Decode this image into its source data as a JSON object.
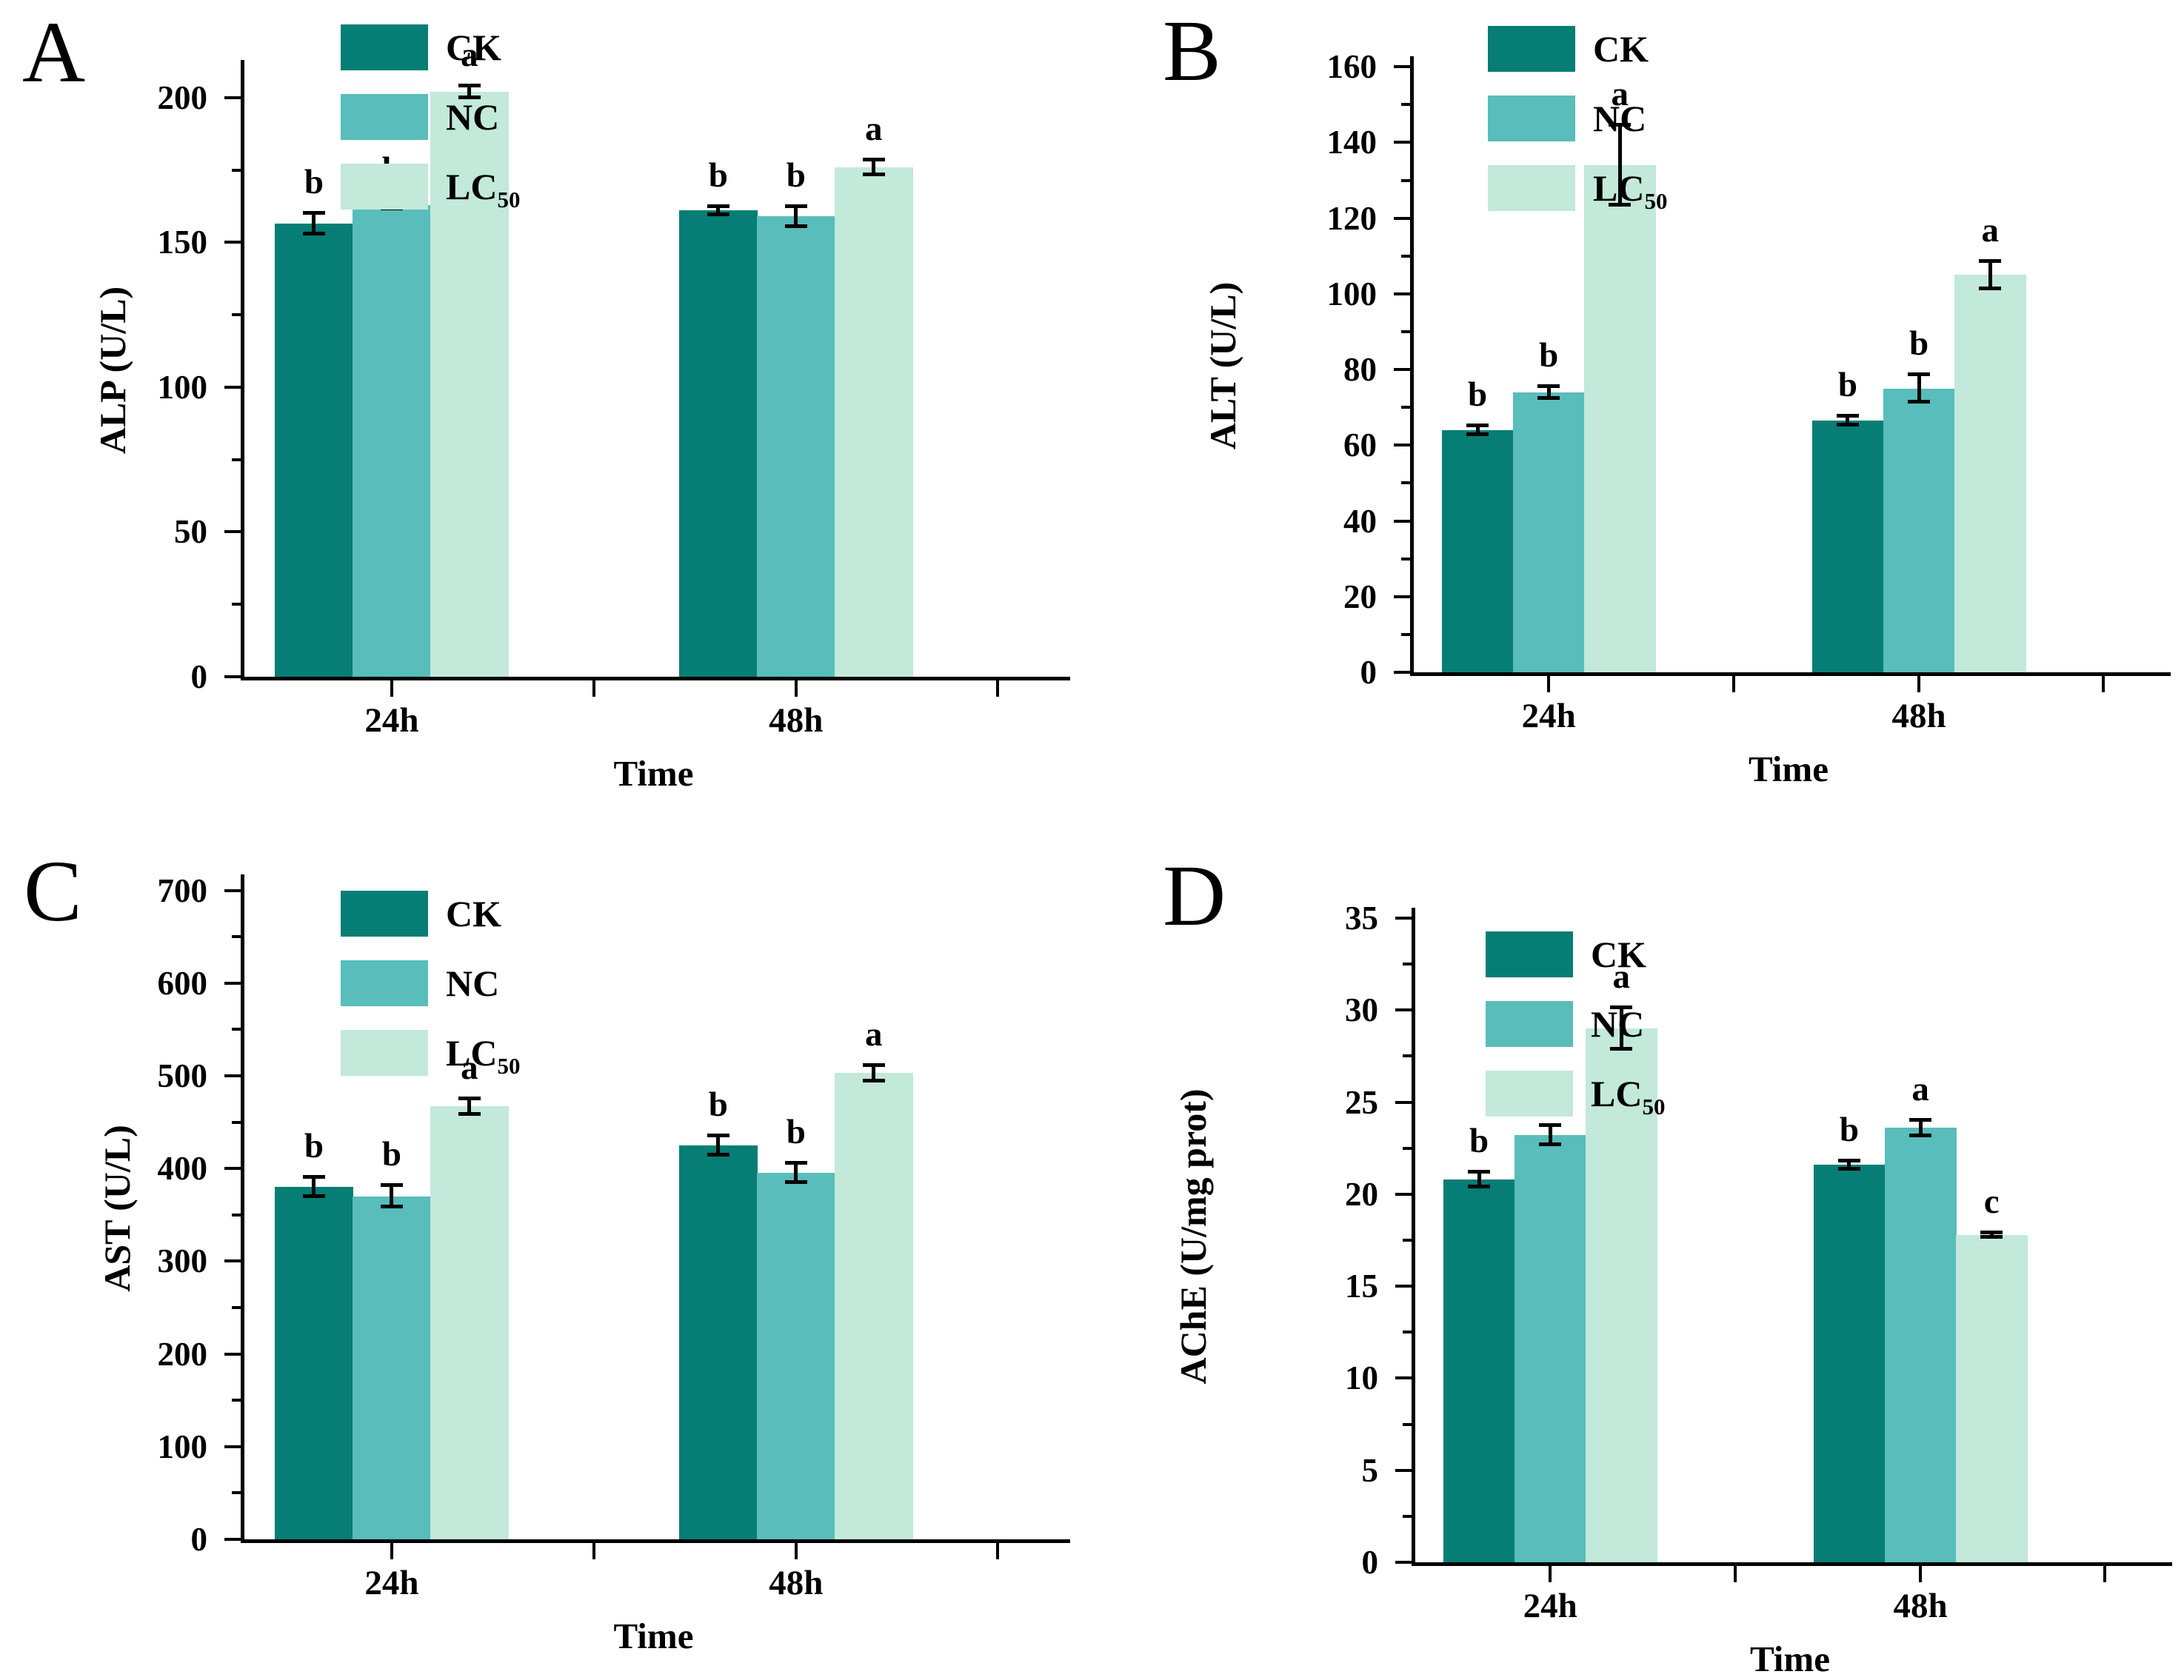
{
  "colors": {
    "series": [
      "#067e75",
      "#58bdbb",
      "#c2e9da"
    ],
    "axis": "#000000",
    "error_bars": "#000000",
    "background": "#ffffff"
  },
  "legend": {
    "items": [
      {
        "label": "CK",
        "sub": ""
      },
      {
        "label": "NC",
        "sub": ""
      },
      {
        "label": "LC",
        "sub": "50"
      }
    ]
  },
  "chart_data": [
    {
      "panel": "A",
      "type": "bar",
      "title": "",
      "ylabel": "ALP (U/L)",
      "xlabel": "Time",
      "categories": [
        "24h",
        "48h"
      ],
      "ylim": [
        0,
        212
      ],
      "yticks": [
        0,
        50,
        100,
        150,
        200
      ],
      "yminor_step": 25,
      "legend_position": "top-left",
      "grid": false,
      "series": [
        {
          "name": "CK",
          "values": [
            156.5,
            161
          ],
          "errors": [
            4,
            2
          ],
          "sig_letters": [
            "b",
            "b"
          ]
        },
        {
          "name": "NC",
          "values": [
            163,
            159
          ],
          "errors": [
            2,
            4
          ],
          "sig_letters": [
            "b",
            "b"
          ]
        },
        {
          "name": "LC50",
          "values": [
            202,
            176
          ],
          "errors": [
            2.5,
            3
          ],
          "sig_letters": [
            "a",
            "a"
          ]
        }
      ]
    },
    {
      "panel": "B",
      "type": "bar",
      "title": "",
      "ylabel": "ALT (U/L)",
      "xlabel": "Time",
      "categories": [
        "24h",
        "48h"
      ],
      "ylim": [
        0,
        162
      ],
      "yticks": [
        0,
        20,
        40,
        60,
        80,
        100,
        120,
        140,
        160
      ],
      "yminor_step": 10,
      "legend_position": "top-left",
      "grid": false,
      "series": [
        {
          "name": "CK",
          "values": [
            64,
            66.5
          ],
          "errors": [
            1.5,
            1.5
          ],
          "sig_letters": [
            "b",
            "b"
          ]
        },
        {
          "name": "NC",
          "values": [
            74,
            75
          ],
          "errors": [
            2,
            4
          ],
          "sig_letters": [
            "b",
            "b"
          ]
        },
        {
          "name": "LC50",
          "values": [
            134,
            105
          ],
          "errors": [
            11,
            4
          ],
          "sig_letters": [
            "a",
            "a"
          ]
        }
      ]
    },
    {
      "panel": "C",
      "type": "bar",
      "title": "",
      "ylabel": "AST (U/L)",
      "xlabel": "Time",
      "categories": [
        "24h",
        "48h"
      ],
      "ylim": [
        0,
        714
      ],
      "yticks": [
        0,
        100,
        200,
        300,
        400,
        500,
        600,
        700
      ],
      "yminor_step": 50,
      "legend_position": "top-left",
      "grid": false,
      "series": [
        {
          "name": "CK",
          "values": [
            380,
            425
          ],
          "errors": [
            12,
            12
          ],
          "sig_letters": [
            "b",
            "b"
          ]
        },
        {
          "name": "NC",
          "values": [
            370,
            395
          ],
          "errors": [
            13,
            12
          ],
          "sig_letters": [
            "b",
            "b"
          ]
        },
        {
          "name": "LC50",
          "values": [
            467,
            503
          ],
          "errors": [
            10,
            10
          ],
          "sig_letters": [
            "a",
            "a"
          ]
        }
      ]
    },
    {
      "panel": "D",
      "type": "bar",
      "title": "",
      "ylabel": "AChE (U/mg prot)",
      "xlabel": "Time",
      "categories": [
        "24h",
        "48h"
      ],
      "ylim": [
        0,
        35.4
      ],
      "yticks": [
        0,
        5,
        10,
        15,
        20,
        25,
        30,
        35
      ],
      "yminor_step": 2.5,
      "legend_position": "top-left",
      "grid": false,
      "series": [
        {
          "name": "CK",
          "values": [
            20.8,
            21.6
          ],
          "errors": [
            0.5,
            0.3
          ],
          "sig_letters": [
            "b",
            "b"
          ]
        },
        {
          "name": "NC",
          "values": [
            23.2,
            23.6
          ],
          "errors": [
            0.6,
            0.5
          ],
          "sig_letters": [
            "b",
            "a"
          ]
        },
        {
          "name": "LC50",
          "values": [
            29,
            17.8
          ],
          "errors": [
            1.2,
            0.2
          ],
          "sig_letters": [
            "a",
            "c"
          ]
        }
      ]
    }
  ]
}
